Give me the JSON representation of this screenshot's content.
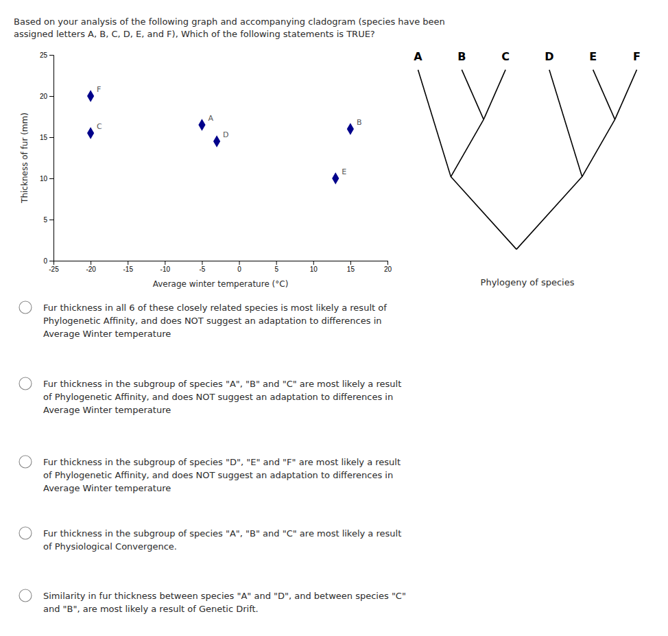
{
  "chart_data": [
    {
      "type": "scatter",
      "title": "Based on your analysis of the following graph and accompanying cladogram (species have been\nassigned letters A, B, C, D, E, and F), Which of the following statements is TRUE?",
      "categories": [
        "F",
        "C",
        "A",
        "D",
        "B",
        "E"
      ],
      "x": [
        -20,
        -20,
        -5,
        -3,
        15,
        13
      ],
      "values": [
        20,
        15.5,
        16.5,
        14.5,
        16,
        10
      ],
      "color": "#00008B",
      "marker": "diamond",
      "xlabel": "Average winter temperature (°C)",
      "ylabel": "Thickness of fur (mm)",
      "xlim": [
        -25,
        20
      ],
      "ylim": [
        0,
        25
      ],
      "xticks": [
        -25,
        -20,
        -15,
        -10,
        -5,
        0,
        5,
        10,
        15,
        20
      ],
      "yticks": [
        0,
        5,
        10,
        15,
        20,
        25
      ],
      "grid": false,
      "annotations": [
        "Fur thickness in all 6 of these closely related species is most likely a result of\nPhylogenetic Affinity, and does NOT suggest an adaptation to differences in\nAverage Winter temperature",
        "Fur thickness in the subgroup of species \"A\", \"B\" and \"C\" are most likely a result\nof Phylogenetic Affinity, and does NOT suggest an adaptation to differences in\nAverage Winter temperature",
        "Fur thickness in the subgroup of species \"D\", \"E\" and \"F\" are most likely a result\nof Phylogenetic Affinity, and does NOT suggest an adaptation to differences in\nAverage Winter temperature",
        "Fur thickness in the subgroup of species \"A\", \"B\" and \"C\" are most likely a result\nof Physiological Convergence.",
        "Similarity in fur thickness between species \"A\" and \"D\", and between species \"C\"\nand \"B\", are most likely a result of Genetic Drift."
      ]
    },
    {
      "type": "cladogram",
      "title": "Phylogeny of species",
      "categories": [
        "A",
        "B",
        "C",
        "D",
        "E",
        "F"
      ]
    }
  ]
}
